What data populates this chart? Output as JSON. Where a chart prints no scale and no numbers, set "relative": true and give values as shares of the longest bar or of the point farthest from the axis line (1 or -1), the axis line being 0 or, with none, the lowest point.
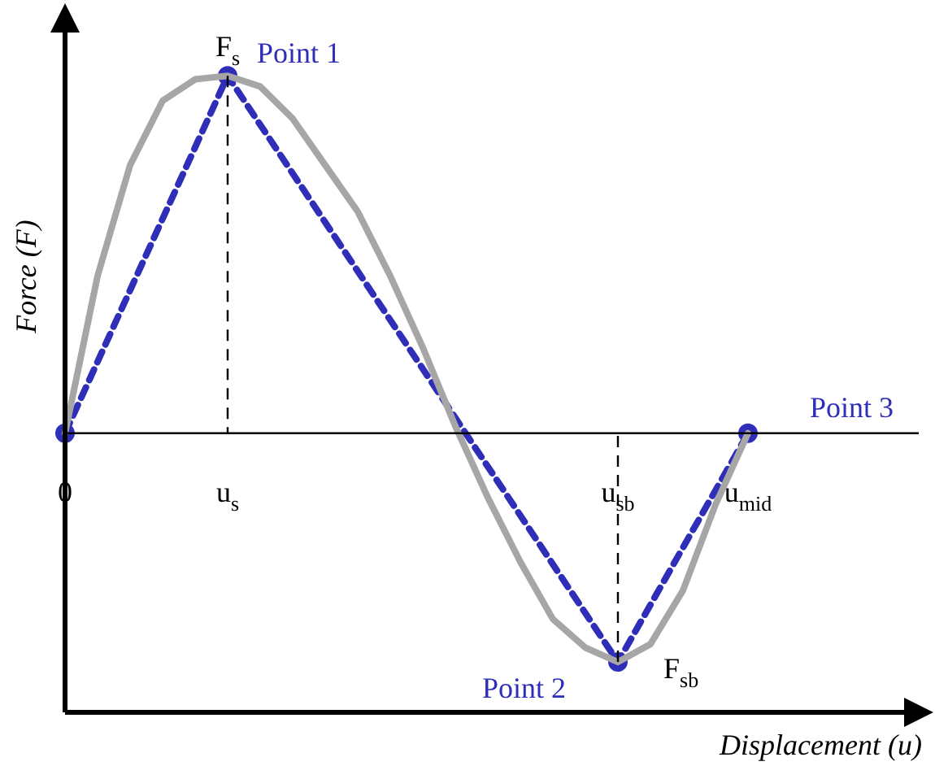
{
  "chart_data": {
    "type": "line",
    "relative": true,
    "xlabel": "Displacement (u)",
    "ylabel": "Force (F)",
    "categories": [
      "0",
      null,
      null,
      null,
      null,
      "u$_{s}$",
      null,
      null,
      null,
      null,
      null,
      null,
      null,
      null,
      null,
      null,
      null,
      "u$_{sb}$",
      null,
      null,
      null,
      "u$_{mid}$"
    ],
    "series": [
      {
        "color": "#a6a6a6",
        "line_style": "solid",
        "marker": "none",
        "values": [
          0,
          0.44,
          0.75,
          0.93,
          0.99,
          1,
          0.97,
          0.88,
          0.75,
          0.62,
          0.44,
          0.24,
          0.02,
          -0.18,
          -0.36,
          -0.52,
          -0.6,
          -0.64,
          -0.59,
          -0.44,
          -0.2,
          0
        ]
      },
      {
        "color": "#2e2eb8",
        "line_style": "dashed",
        "marker": "circle",
        "values": [
          0,
          null,
          null,
          null,
          null,
          1,
          null,
          null,
          null,
          null,
          null,
          null,
          null,
          null,
          null,
          null,
          null,
          -0.64,
          null,
          null,
          null,
          0
        ]
      }
    ],
    "ref_lines": [
      {
        "axis": "x",
        "value": "u$_{s}$",
        "color": "#000000",
        "line_style": "dashed"
      },
      {
        "axis": "x",
        "value": "u$_{sb}$",
        "color": "#000000",
        "line_style": "dashed"
      }
    ],
    "annotations": [
      "F$_{s}$",
      "Point 1",
      "Point 2",
      "F$_{sb}$",
      "Point 3"
    ],
    "legend": false
  }
}
